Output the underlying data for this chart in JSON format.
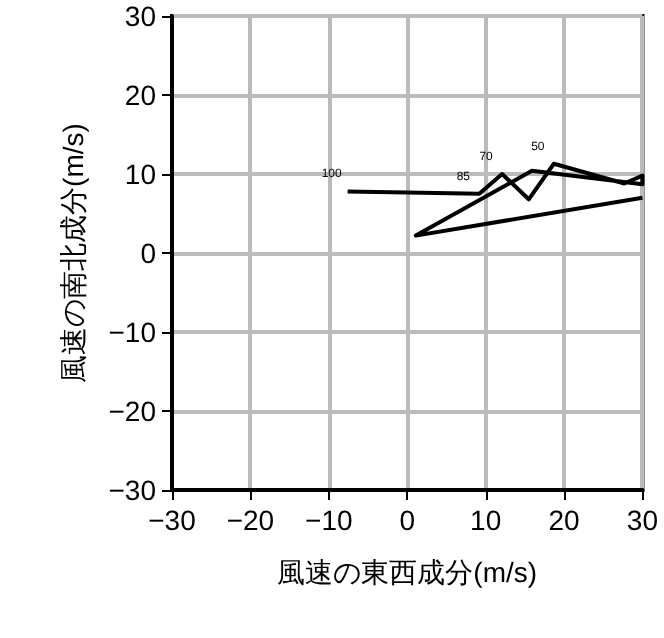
{
  "chart_data": {
    "type": "line",
    "xlabel": "風速の東西成分(m/s)",
    "ylabel": "風速の南北成分(m/s)",
    "x": [
      -7.6,
      9.2,
      12.1,
      15.5,
      18.7,
      27.7,
      30,
      30,
      15.9,
      1.1,
      30
    ],
    "series": [
      {
        "color": "#000000",
        "values": [
          7.8,
          7.5,
          10.0,
          6.8,
          11.3,
          8.8,
          9.8,
          8.7,
          10.4,
          2.2,
          7.0
        ]
      }
    ],
    "marker": "none",
    "annotations": [
      {
        "text": "100",
        "x": -7.6,
        "y": 7.8
      },
      {
        "text": "85",
        "x": 9.2,
        "y": 7.5
      },
      {
        "text": "70",
        "x": 12.1,
        "y": 10.0
      },
      {
        "text": "50",
        "x": 18.7,
        "y": 11.3
      }
    ],
    "xlim": [
      -30,
      30
    ],
    "ylim": [
      -30,
      30
    ],
    "xticks": [
      {
        "value": -30,
        "label": "−30"
      },
      {
        "value": -20,
        "label": "−20"
      },
      {
        "value": -10,
        "label": "−10"
      },
      0,
      10,
      20,
      30
    ],
    "yticks": [
      {
        "value": -30,
        "label": "−30"
      },
      {
        "value": -20,
        "label": "−20"
      },
      {
        "value": -10,
        "label": "−10"
      },
      0,
      10,
      20,
      30
    ],
    "grid": true
  }
}
